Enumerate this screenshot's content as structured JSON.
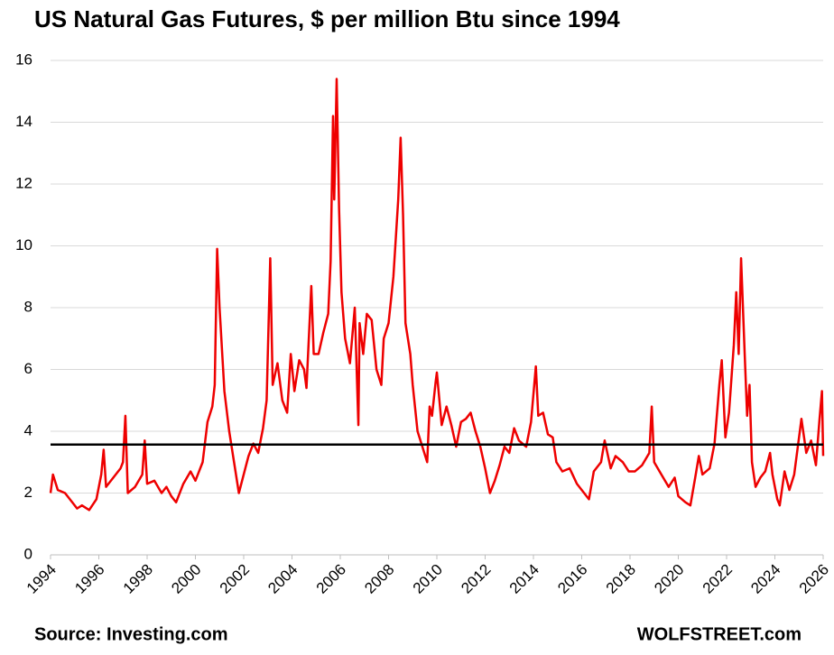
{
  "chart_data": {
    "type": "line",
    "title": "US Natural Gas Futures, $ per million Btu since 1994",
    "source": "Source: Investing.com",
    "credit": "WOLFSTREET.com",
    "xlim": [
      1994,
      2026
    ],
    "xticks": [
      1994,
      1996,
      1998,
      2000,
      2002,
      2004,
      2006,
      2008,
      2010,
      2012,
      2014,
      2016,
      2018,
      2020,
      2022,
      2024,
      2026
    ],
    "ylim": [
      0,
      16
    ],
    "yticks": [
      0,
      2,
      4,
      6,
      8,
      10,
      12,
      14,
      16
    ],
    "grid": true,
    "hline": 3.57,
    "hline_color": "#000000",
    "series": [
      {
        "color": "#ee0000",
        "x": [
          1994.0,
          1994.1,
          1994.3,
          1994.6,
          1994.9,
          1995.1,
          1995.3,
          1995.6,
          1995.9,
          1996.1,
          1996.2,
          1996.3,
          1996.6,
          1996.9,
          1997.0,
          1997.1,
          1997.2,
          1997.5,
          1997.8,
          1997.9,
          1998.0,
          1998.3,
          1998.6,
          1998.8,
          1999.0,
          1999.2,
          1999.5,
          1999.8,
          2000.0,
          2000.3,
          2000.5,
          2000.7,
          2000.8,
          2000.9,
          2001.0,
          2001.2,
          2001.4,
          2001.6,
          2001.8,
          2002.0,
          2002.2,
          2002.4,
          2002.6,
          2002.8,
          2002.95,
          2003.1,
          2003.2,
          2003.4,
          2003.6,
          2003.8,
          2003.95,
          2004.1,
          2004.3,
          2004.5,
          2004.6,
          2004.8,
          2004.9,
          2005.1,
          2005.3,
          2005.5,
          2005.6,
          2005.7,
          2005.75,
          2005.85,
          2005.95,
          2006.05,
          2006.2,
          2006.4,
          2006.6,
          2006.75,
          2006.8,
          2006.95,
          2007.1,
          2007.3,
          2007.5,
          2007.7,
          2007.8,
          2008.0,
          2008.2,
          2008.4,
          2008.5,
          2008.6,
          2008.7,
          2008.9,
          2009.0,
          2009.2,
          2009.4,
          2009.6,
          2009.7,
          2009.8,
          2009.95,
          2010.0,
          2010.2,
          2010.4,
          2010.6,
          2010.8,
          2011.0,
          2011.2,
          2011.4,
          2011.6,
          2011.8,
          2012.0,
          2012.2,
          2012.4,
          2012.6,
          2012.8,
          2013.0,
          2013.2,
          2013.4,
          2013.7,
          2013.9,
          2014.1,
          2014.2,
          2014.4,
          2014.6,
          2014.8,
          2014.95,
          2015.2,
          2015.5,
          2015.8,
          2016.1,
          2016.3,
          2016.5,
          2016.8,
          2016.95,
          2017.2,
          2017.4,
          2017.7,
          2017.95,
          2018.2,
          2018.5,
          2018.8,
          2018.9,
          2019.0,
          2019.3,
          2019.6,
          2019.85,
          2020.0,
          2020.3,
          2020.5,
          2020.7,
          2020.85,
          2021.0,
          2021.3,
          2021.5,
          2021.7,
          2021.8,
          2021.95,
          2022.1,
          2022.3,
          2022.4,
          2022.5,
          2022.6,
          2022.75,
          2022.85,
          2022.95,
          2023.05,
          2023.2,
          2023.4,
          2023.6,
          2023.8,
          2023.9,
          2024.1,
          2024.2,
          2024.4,
          2024.6,
          2024.8,
          2024.95,
          2025.1,
          2025.3,
          2025.5,
          2025.7,
          2025.85,
          2025.95,
          2026.0
        ],
        "values": [
          2.0,
          2.6,
          2.1,
          2.0,
          1.7,
          1.5,
          1.6,
          1.45,
          1.8,
          2.6,
          3.4,
          2.2,
          2.5,
          2.8,
          3.0,
          4.5,
          2.0,
          2.2,
          2.6,
          3.7,
          2.3,
          2.4,
          2.0,
          2.2,
          1.9,
          1.7,
          2.3,
          2.7,
          2.4,
          3.0,
          4.3,
          4.8,
          5.5,
          9.9,
          8.0,
          5.3,
          4.0,
          3.0,
          2.0,
          2.6,
          3.2,
          3.6,
          3.3,
          4.1,
          5.0,
          9.6,
          5.5,
          6.2,
          5.0,
          4.6,
          6.5,
          5.3,
          6.3,
          6.0,
          5.4,
          8.7,
          6.5,
          6.5,
          7.2,
          7.8,
          9.5,
          14.2,
          11.5,
          15.4,
          11.2,
          8.5,
          7.0,
          6.2,
          8.0,
          4.2,
          7.5,
          6.5,
          7.8,
          7.6,
          6.0,
          5.5,
          7.0,
          7.5,
          9.0,
          11.5,
          13.5,
          11.0,
          7.5,
          6.5,
          5.5,
          4.0,
          3.5,
          3.0,
          4.8,
          4.5,
          5.6,
          5.9,
          4.2,
          4.8,
          4.2,
          3.5,
          4.3,
          4.4,
          4.6,
          4.0,
          3.5,
          2.8,
          2.0,
          2.4,
          2.9,
          3.5,
          3.3,
          4.1,
          3.7,
          3.5,
          4.3,
          6.1,
          4.5,
          4.6,
          3.9,
          3.8,
          3.0,
          2.7,
          2.8,
          2.3,
          2.0,
          1.8,
          2.7,
          3.0,
          3.7,
          2.8,
          3.2,
          3.0,
          2.7,
          2.7,
          2.9,
          3.3,
          4.8,
          3.0,
          2.6,
          2.2,
          2.5,
          1.9,
          1.7,
          1.6,
          2.5,
          3.2,
          2.6,
          2.8,
          3.6,
          5.5,
          6.3,
          3.8,
          4.6,
          6.8,
          8.5,
          6.5,
          9.6,
          6.5,
          4.5,
          5.5,
          3.0,
          2.2,
          2.5,
          2.7,
          3.3,
          2.6,
          1.8,
          1.6,
          2.7,
          2.1,
          2.6,
          3.5,
          4.4,
          3.3,
          3.7,
          2.9,
          4.4,
          5.3,
          3.2
        ]
      }
    ]
  }
}
